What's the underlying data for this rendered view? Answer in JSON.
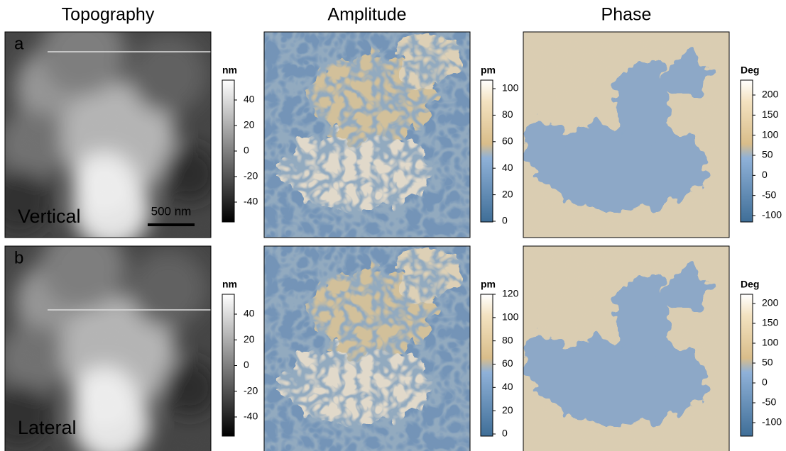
{
  "columns": [
    {
      "title": "Topography"
    },
    {
      "title": "Amplitude"
    },
    {
      "title": "Phase"
    }
  ],
  "rows": [
    {
      "label": "a",
      "mode": "Vertical",
      "scale_bar": "500 nm",
      "colorbars": [
        {
          "unit": "nm",
          "ticks": [
            "40",
            "20",
            "0",
            "-20",
            "-40"
          ]
        },
        {
          "unit": "pm",
          "ticks": [
            "100",
            "80",
            "60",
            "40",
            "20",
            "0"
          ]
        },
        {
          "unit": "Deg",
          "ticks": [
            "200",
            "150",
            "100",
            "50",
            "0",
            "-50",
            "-100"
          ]
        }
      ]
    },
    {
      "label": "b",
      "mode": "Lateral",
      "colorbars": [
        {
          "unit": "nm",
          "ticks": [
            "40",
            "20",
            "0",
            "-20",
            "-40"
          ]
        },
        {
          "unit": "pm",
          "ticks": [
            "120",
            "100",
            "80",
            "60",
            "40",
            "20",
            "0"
          ]
        },
        {
          "unit": "Deg",
          "ticks": [
            "200",
            "150",
            "100",
            "50",
            "0",
            "-50",
            "-100"
          ]
        }
      ]
    }
  ]
}
